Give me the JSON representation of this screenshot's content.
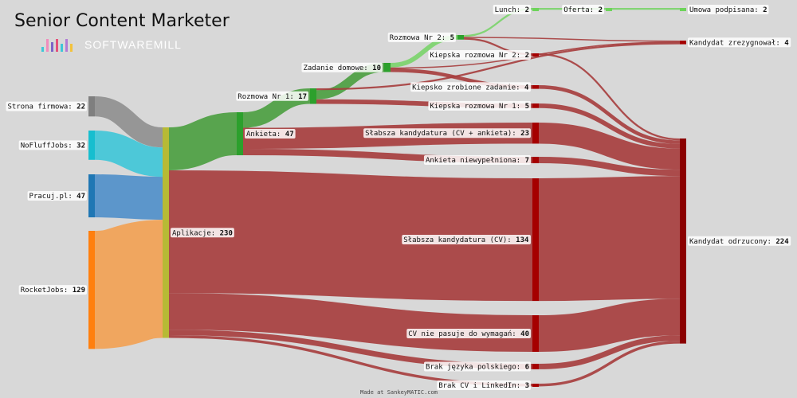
{
  "header": {
    "title": "Senior Content Marketer",
    "logo_text": "SOFTWAREMILL"
  },
  "footer": {
    "credit": "Made at SankeyMATIC.com"
  },
  "colors": {
    "background": "#d8d8d8",
    "reject": "#a63c3c",
    "reject_node": "#8b0000",
    "green_dark": "#4a9e3f",
    "green_light": "#7ad46a",
    "grey": "#8f8f8f",
    "cyan": "#3ec7d8",
    "blue": "#4f8fca",
    "orange": "#f3a152",
    "applications_node": "#b7ba35"
  },
  "chart_data": {
    "type": "sankey",
    "title": "Senior Content Marketer",
    "nodes": [
      {
        "id": "strona",
        "label": "Strona firmowa",
        "value": 22,
        "color": "#7f7f7f"
      },
      {
        "id": "nofluff",
        "label": "NoFluffJobs",
        "value": 32,
        "color": "#17becf"
      },
      {
        "id": "pracuj",
        "label": "Pracuj.pl",
        "value": 47,
        "color": "#1f77b4"
      },
      {
        "id": "rocket",
        "label": "RocketJobs",
        "value": 129,
        "color": "#ff7f0e"
      },
      {
        "id": "aplikacje",
        "label": "Aplikacje",
        "value": 230,
        "color": "#b7ba35"
      },
      {
        "id": "ankieta",
        "label": "Ankieta",
        "value": 47,
        "color": "#2ca02c"
      },
      {
        "id": "rozmowa1",
        "label": "Rozmowa Nr 1",
        "value": 17,
        "color": "#2ca02c"
      },
      {
        "id": "zadanie",
        "label": "Zadanie domowe",
        "value": 10,
        "color": "#2ca02c"
      },
      {
        "id": "rozmowa2",
        "label": "Rozmowa Nr 2",
        "value": 5,
        "color": "#2ca02c"
      },
      {
        "id": "lunch",
        "label": "Lunch",
        "value": 2,
        "color": "#6dd35a"
      },
      {
        "id": "oferta",
        "label": "Oferta",
        "value": 2,
        "color": "#6dd35a"
      },
      {
        "id": "umowa",
        "label": "Umowa podpisana",
        "value": 2,
        "color": "#6dd35a"
      },
      {
        "id": "kiepska2",
        "label": "Kiepska rozmowa Nr 2",
        "value": 2,
        "color": "#a50000"
      },
      {
        "id": "kiepskie_zad",
        "label": "Kiepsko zrobione zadanie",
        "value": 4,
        "color": "#a50000"
      },
      {
        "id": "kiepska1",
        "label": "Kiepska rozmowa Nr 1",
        "value": 5,
        "color": "#a50000"
      },
      {
        "id": "slabsza_ca",
        "label": "Słabsza kandydatura (CV + ankieta)",
        "value": 23,
        "color": "#a50000"
      },
      {
        "id": "niewyp",
        "label": "Ankieta niewypełniona",
        "value": 7,
        "color": "#a50000"
      },
      {
        "id": "slabsza_cv",
        "label": "Słabsza kandydatura (CV)",
        "value": 134,
        "color": "#a50000"
      },
      {
        "id": "cv_nie",
        "label": "CV nie pasuje do wymagań",
        "value": 40,
        "color": "#a50000"
      },
      {
        "id": "brak_pl",
        "label": "Brak języka polskiego",
        "value": 6,
        "color": "#a50000"
      },
      {
        "id": "brak_cv",
        "label": "Brak CV i LinkedIn",
        "value": 3,
        "color": "#a50000"
      },
      {
        "id": "zrezyg",
        "label": "Kandydat zrezygnował",
        "value": 4,
        "color": "#a50000"
      },
      {
        "id": "odrzucony",
        "label": "Kandydat odrzucony",
        "value": 224,
        "color": "#8b0000"
      }
    ],
    "links": [
      {
        "source": "strona",
        "target": "aplikacje",
        "value": 22
      },
      {
        "source": "nofluff",
        "target": "aplikacje",
        "value": 32
      },
      {
        "source": "pracuj",
        "target": "aplikacje",
        "value": 47
      },
      {
        "source": "rocket",
        "target": "aplikacje",
        "value": 129
      },
      {
        "source": "aplikacje",
        "target": "ankieta",
        "value": 47
      },
      {
        "source": "aplikacje",
        "target": "slabsza_cv",
        "value": 134
      },
      {
        "source": "aplikacje",
        "target": "cv_nie",
        "value": 40
      },
      {
        "source": "aplikacje",
        "target": "brak_pl",
        "value": 6
      },
      {
        "source": "aplikacje",
        "target": "brak_cv",
        "value": 3
      },
      {
        "source": "ankieta",
        "target": "rozmowa1",
        "value": 17
      },
      {
        "source": "ankieta",
        "target": "slabsza_ca",
        "value": 23
      },
      {
        "source": "ankieta",
        "target": "niewyp",
        "value": 7
      },
      {
        "source": "rozmowa1",
        "target": "zadanie",
        "value": 10
      },
      {
        "source": "rozmowa1",
        "target": "kiepska1",
        "value": 5
      },
      {
        "source": "rozmowa1",
        "target": "zrezyg",
        "value": 2
      },
      {
        "source": "zadanie",
        "target": "rozmowa2",
        "value": 5
      },
      {
        "source": "zadanie",
        "target": "kiepskie_zad",
        "value": 4
      },
      {
        "source": "zadanie",
        "target": "zrezyg",
        "value": 1
      },
      {
        "source": "rozmowa2",
        "target": "lunch",
        "value": 2
      },
      {
        "source": "rozmowa2",
        "target": "kiepska2",
        "value": 2
      },
      {
        "source": "rozmowa2",
        "target": "zrezyg",
        "value": 1
      },
      {
        "source": "lunch",
        "target": "oferta",
        "value": 2
      },
      {
        "source": "oferta",
        "target": "umowa",
        "value": 2
      },
      {
        "source": "kiepska2",
        "target": "odrzucony",
        "value": 2
      },
      {
        "source": "kiepskie_zad",
        "target": "odrzucony",
        "value": 4
      },
      {
        "source": "kiepska1",
        "target": "odrzucony",
        "value": 5
      },
      {
        "source": "slabsza_ca",
        "target": "odrzucony",
        "value": 23
      },
      {
        "source": "niewyp",
        "target": "odrzucony",
        "value": 7
      },
      {
        "source": "slabsza_cv",
        "target": "odrzucony",
        "value": 134
      },
      {
        "source": "cv_nie",
        "target": "odrzucony",
        "value": 40
      },
      {
        "source": "brak_pl",
        "target": "odrzucony",
        "value": 6
      },
      {
        "source": "brak_cv",
        "target": "odrzucony",
        "value": 3
      }
    ]
  }
}
